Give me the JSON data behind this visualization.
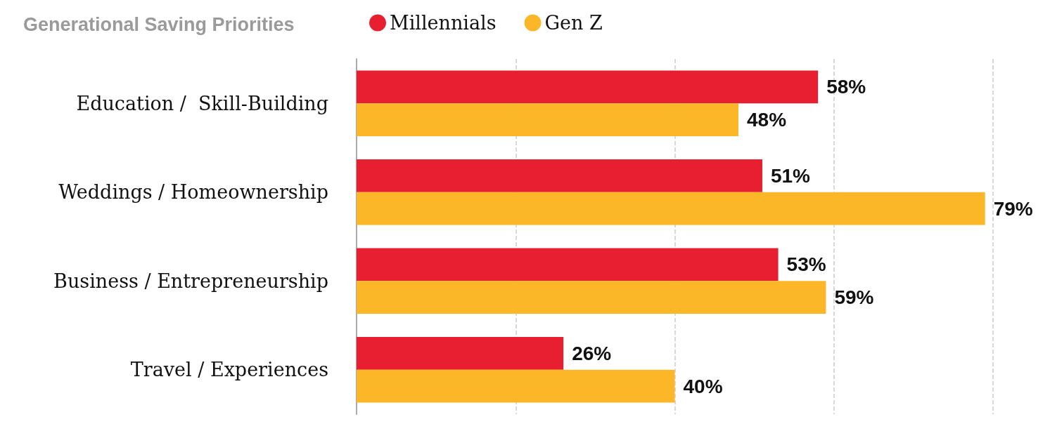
{
  "chart_data": {
    "type": "bar",
    "orientation": "horizontal",
    "title": "Generational Saving Priorities",
    "categories": [
      "Education /  Skill-Building",
      "Weddings / Homeownership",
      "Business / Entrepreneurship",
      "Travel / Experiences"
    ],
    "series": [
      {
        "name": "Millennials",
        "color": "#e81e31",
        "values": [
          58,
          51,
          53,
          26
        ],
        "value_labels": [
          "58%",
          "51%",
          "53%",
          "26%"
        ]
      },
      {
        "name": "Gen Z",
        "color": "#fbb727",
        "values": [
          48,
          79,
          59,
          40
        ],
        "value_labels": [
          "48%",
          "79%",
          "59%",
          "40%"
        ]
      }
    ],
    "xlim": [
      0,
      80
    ],
    "xticks": [
      {
        "value": 0,
        "label": null
      },
      {
        "value": 20,
        "label": null
      },
      {
        "value": 40,
        "label": null
      },
      {
        "value": 60,
        "label": null
      },
      {
        "value": 80,
        "label": null
      }
    ],
    "tick_labels": "y",
    "grid": "x",
    "legend": "top"
  }
}
